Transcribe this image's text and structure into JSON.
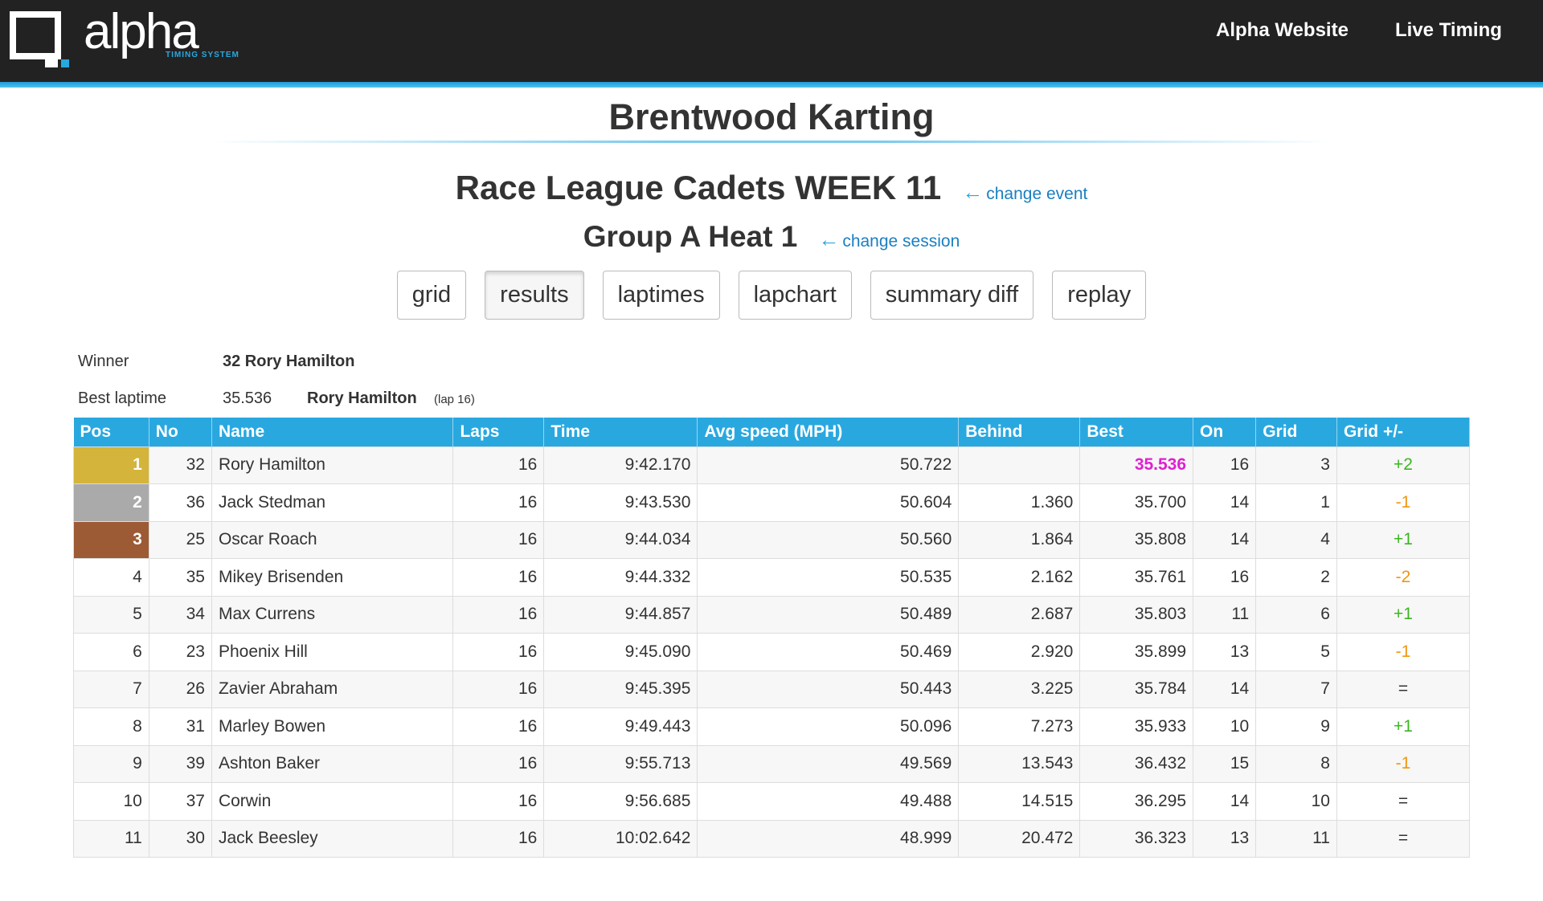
{
  "header": {
    "logo": "alpha",
    "logo_tagline": "TIMING SYSTEM",
    "nav": [
      "Alpha Website",
      "Live Timing"
    ]
  },
  "title": "Brentwood Karting",
  "event": {
    "name": "Race League Cadets WEEK 11",
    "link": "change event"
  },
  "session": {
    "name": "Group A Heat 1",
    "link": "change session"
  },
  "tabs": [
    "grid",
    "results",
    "laptimes",
    "lapchart",
    "summary diff",
    "replay"
  ],
  "summary": {
    "winner_label": "Winner",
    "winner": "32 Rory Hamilton",
    "best_label": "Best laptime",
    "best_time": "35.536",
    "best_driver": "Rory Hamilton",
    "best_lap": "(lap 16)"
  },
  "table": {
    "columns": [
      "Pos",
      "No",
      "Name",
      "Laps",
      "Time",
      "Avg speed (MPH)",
      "Behind",
      "Best",
      "On",
      "Grid",
      "Grid +/-"
    ],
    "rows": [
      [
        "1",
        "32",
        "Rory Hamilton",
        "16",
        "9:42.170",
        "50.722",
        "",
        "35.536",
        "16",
        "3",
        "+2"
      ],
      [
        "2",
        "36",
        "Jack Stedman",
        "16",
        "9:43.530",
        "50.604",
        "1.360",
        "35.700",
        "14",
        "1",
        "-1"
      ],
      [
        "3",
        "25",
        "Oscar Roach",
        "16",
        "9:44.034",
        "50.560",
        "1.864",
        "35.808",
        "14",
        "4",
        "+1"
      ],
      [
        "4",
        "35",
        "Mikey Brisenden",
        "16",
        "9:44.332",
        "50.535",
        "2.162",
        "35.761",
        "16",
        "2",
        "-2"
      ],
      [
        "5",
        "34",
        "Max Currens",
        "16",
        "9:44.857",
        "50.489",
        "2.687",
        "35.803",
        "11",
        "6",
        "+1"
      ],
      [
        "6",
        "23",
        "Phoenix Hill",
        "16",
        "9:45.090",
        "50.469",
        "2.920",
        "35.899",
        "13",
        "5",
        "-1"
      ],
      [
        "7",
        "26",
        "Zavier Abraham",
        "16",
        "9:45.395",
        "50.443",
        "3.225",
        "35.784",
        "14",
        "7",
        "="
      ],
      [
        "8",
        "31",
        "Marley Bowen",
        "16",
        "9:49.443",
        "50.096",
        "7.273",
        "35.933",
        "10",
        "9",
        "+1"
      ],
      [
        "9",
        "39",
        "Ashton Baker",
        "16",
        "9:55.713",
        "49.569",
        "13.543",
        "36.432",
        "15",
        "8",
        "-1"
      ],
      [
        "10",
        "37",
        "Corwin",
        "16",
        "9:56.685",
        "49.488",
        "14.515",
        "36.295",
        "14",
        "10",
        "="
      ],
      [
        "11",
        "30",
        "Jack Beesley",
        "16",
        "10:02.642",
        "48.999",
        "20.472",
        "36.323",
        "13",
        "11",
        "="
      ]
    ]
  }
}
